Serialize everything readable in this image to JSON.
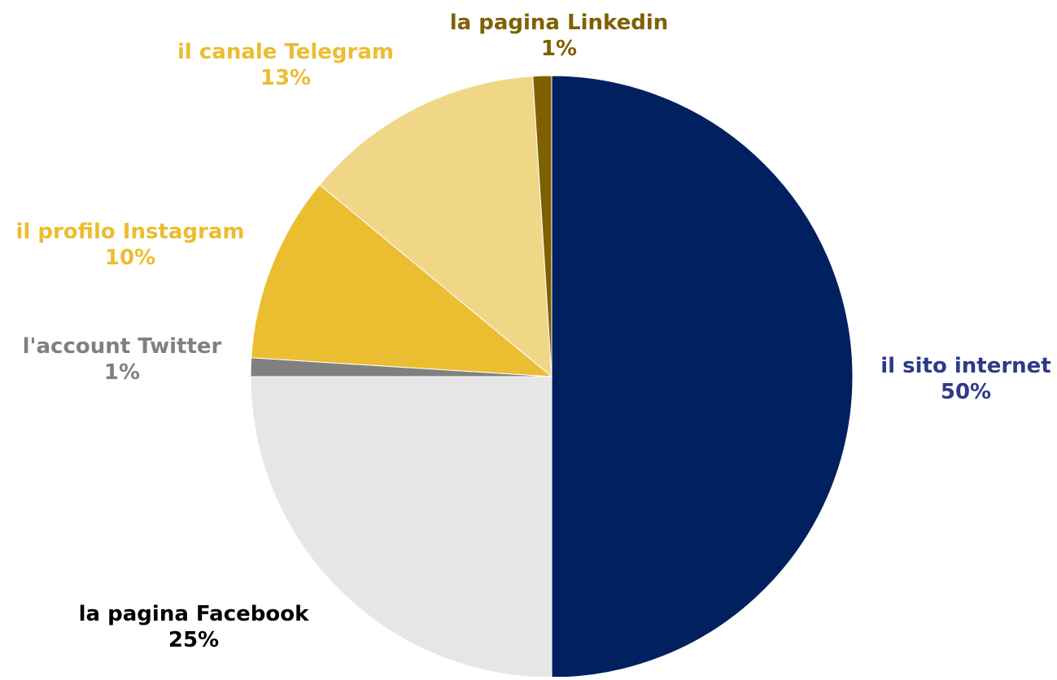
{
  "chart_data": {
    "type": "pie",
    "title": "",
    "slices": [
      {
        "label": "il sito internet",
        "value": 50,
        "percent_label": "50%",
        "color": "#002060",
        "label_color": "#2E3A87"
      },
      {
        "label": "la pagina Facebook",
        "value": 25,
        "percent_label": "25%",
        "color": "#E6E6E6",
        "label_color": "#000000"
      },
      {
        "label": "l'account Twitter",
        "value": 1,
        "percent_label": "1%",
        "color": "#808080",
        "label_color": "#808080"
      },
      {
        "label": "il profilo Instagram",
        "value": 10,
        "percent_label": "10%",
        "color": "#EBBD30",
        "label_color": "#EBBD30"
      },
      {
        "label": "il canale Telegram",
        "value": 13,
        "percent_label": "13%",
        "color": "#F0D787",
        "label_color": "#EBBD30"
      },
      {
        "label": "la pagina Linkedin",
        "value": 1,
        "percent_label": "1%",
        "color": "#7F6000",
        "label_color": "#7F6000"
      }
    ],
    "legend": "none"
  }
}
